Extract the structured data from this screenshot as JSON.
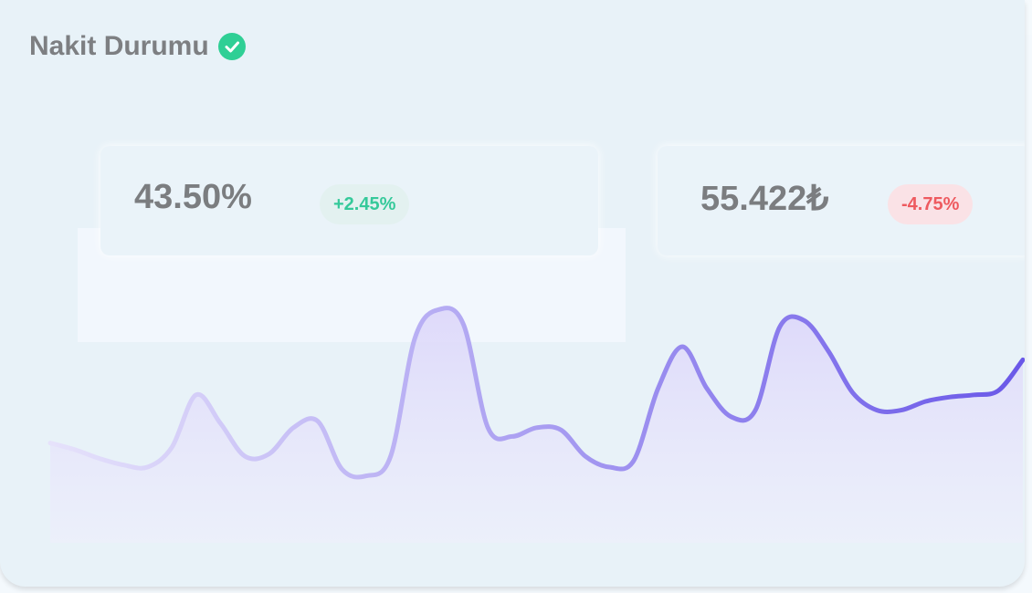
{
  "header": {
    "title": "Nakit Durumu"
  },
  "stats": [
    {
      "value": "43.50%",
      "change": "+2.45%"
    },
    {
      "value": "55.422₺",
      "change": "-4.75%"
    }
  ],
  "sparkline": {
    "type": "line",
    "color": "#7262ec",
    "values": [
      31,
      28,
      24,
      21,
      20,
      29,
      53,
      40,
      25,
      26,
      38,
      41,
      19,
      16,
      25,
      79,
      92,
      85,
      38,
      34,
      38,
      37,
      25,
      20,
      23,
      56,
      75,
      56,
      43,
      46,
      84,
      87,
      73,
      54,
      46,
      46,
      50,
      52,
      53,
      55,
      69
    ]
  }
}
